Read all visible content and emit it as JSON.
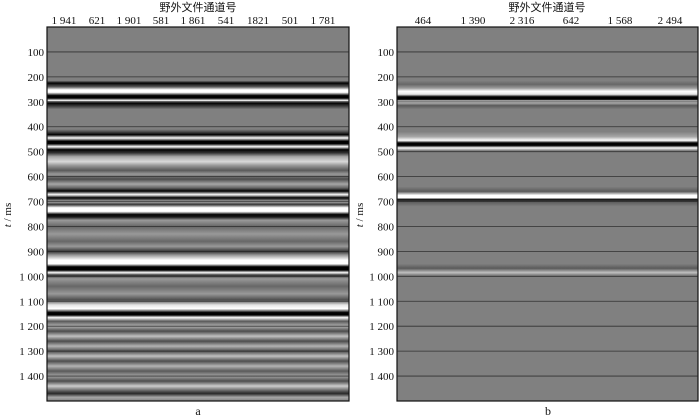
{
  "chart_data": [
    {
      "type": "heatmap",
      "panel_label": "a",
      "xlabel": "野外文件通道号",
      "ylabel_italic": "t",
      "ylabel_unit": " / ms",
      "x_tick_labels": [
        "1 941",
        "621",
        "1 901",
        "581",
        "1 861",
        "541",
        "1821",
        "501",
        "1 781"
      ],
      "y_ticks": [
        100,
        200,
        300,
        400,
        500,
        600,
        700,
        800,
        900,
        1000,
        1100,
        1200,
        1300,
        1400
      ],
      "y_tick_labels": [
        "100",
        "200",
        "300",
        "400",
        "500",
        "600",
        "700",
        "800",
        "900",
        "1 000",
        "1 100",
        "1 200",
        "1 300",
        "1 400"
      ],
      "ylim": [
        0,
        1500
      ],
      "grid": true,
      "colormap": "gray (black = negative, white = positive)",
      "amplitude_profile": [
        [
          0,
          0
        ],
        [
          215,
          0
        ],
        [
          225,
          -1
        ],
        [
          240,
          -0.3
        ],
        [
          252,
          1
        ],
        [
          262,
          1
        ],
        [
          275,
          -1
        ],
        [
          285,
          -1
        ],
        [
          295,
          1
        ],
        [
          305,
          -1
        ],
        [
          318,
          -0.5
        ],
        [
          330,
          0
        ],
        [
          410,
          0
        ],
        [
          420,
          -0.4
        ],
        [
          432,
          -1
        ],
        [
          445,
          1
        ],
        [
          458,
          -1
        ],
        [
          468,
          -1
        ],
        [
          480,
          1
        ],
        [
          492,
          -1
        ],
        [
          505,
          -0.6
        ],
        [
          520,
          0.3
        ],
        [
          540,
          0.7
        ],
        [
          555,
          0.2
        ],
        [
          575,
          -0.3
        ],
        [
          590,
          0.2
        ],
        [
          610,
          -0.4
        ],
        [
          630,
          0.3
        ],
        [
          645,
          -0.2
        ],
        [
          658,
          -1
        ],
        [
          672,
          1
        ],
        [
          685,
          -1
        ],
        [
          700,
          0.4
        ],
        [
          712,
          -0.6
        ],
        [
          725,
          1
        ],
        [
          740,
          1
        ],
        [
          752,
          -1
        ],
        [
          762,
          -0.8
        ],
        [
          775,
          0.2
        ],
        [
          800,
          -0.2
        ],
        [
          830,
          0.2
        ],
        [
          860,
          -0.2
        ],
        [
          880,
          0.2
        ],
        [
          900,
          -0.6
        ],
        [
          915,
          0.2
        ],
        [
          935,
          1
        ],
        [
          950,
          1
        ],
        [
          962,
          -1
        ],
        [
          975,
          -1
        ],
        [
          985,
          1
        ],
        [
          995,
          -0.6
        ],
        [
          1010,
          0.2
        ],
        [
          1040,
          -0.2
        ],
        [
          1070,
          0.2
        ],
        [
          1095,
          -0.4
        ],
        [
          1115,
          0.8
        ],
        [
          1130,
          1
        ],
        [
          1145,
          -1
        ],
        [
          1155,
          -1
        ],
        [
          1165,
          1
        ],
        [
          1180,
          -0.3
        ],
        [
          1200,
          0.4
        ],
        [
          1220,
          -0.4
        ],
        [
          1240,
          0.5
        ],
        [
          1260,
          -0.4
        ],
        [
          1280,
          0.4
        ],
        [
          1300,
          -0.4
        ],
        [
          1320,
          0.5
        ],
        [
          1340,
          -0.4
        ],
        [
          1360,
          0.4
        ],
        [
          1380,
          -0.3
        ],
        [
          1400,
          0.3
        ],
        [
          1420,
          -0.4
        ],
        [
          1440,
          0.6
        ],
        [
          1460,
          -0.3
        ],
        [
          1470,
          -0.7
        ],
        [
          1485,
          0.3
        ],
        [
          1500,
          0
        ]
      ]
    },
    {
      "type": "heatmap",
      "panel_label": "b",
      "xlabel": "野外文件通道号",
      "ylabel_italic": "t",
      "ylabel_unit": " / ms",
      "x_tick_labels": [
        "464",
        "1 390",
        "2 316",
        "642",
        "1 568",
        "2 494"
      ],
      "y_ticks": [
        100,
        200,
        300,
        400,
        500,
        600,
        700,
        800,
        900,
        1000,
        1100,
        1200,
        1300,
        1400
      ],
      "y_tick_labels": [
        "100",
        "200",
        "300",
        "400",
        "500",
        "600",
        "700",
        "800",
        "900",
        "1 000",
        "1 100",
        "1 200",
        "1 300",
        "1 400"
      ],
      "ylim": [
        0,
        1500
      ],
      "grid": true,
      "colormap": "gray (black = negative, white = positive)",
      "amplitude_profile": [
        [
          0,
          0
        ],
        [
          215,
          0
        ],
        [
          230,
          -0.2
        ],
        [
          245,
          0.2
        ],
        [
          258,
          1
        ],
        [
          270,
          0.8
        ],
        [
          280,
          -1
        ],
        [
          290,
          -1
        ],
        [
          298,
          1
        ],
        [
          305,
          0.3
        ],
        [
          315,
          -0.3
        ],
        [
          330,
          0
        ],
        [
          420,
          0
        ],
        [
          440,
          0.3
        ],
        [
          455,
          1
        ],
        [
          465,
          -1
        ],
        [
          475,
          -1
        ],
        [
          485,
          1
        ],
        [
          495,
          0
        ],
        [
          640,
          0
        ],
        [
          660,
          -0.3
        ],
        [
          675,
          1
        ],
        [
          685,
          1
        ],
        [
          692,
          -1
        ],
        [
          700,
          -0.3
        ],
        [
          720,
          0
        ],
        [
          950,
          0
        ],
        [
          968,
          -0.3
        ],
        [
          985,
          0.5
        ],
        [
          995,
          0
        ],
        [
          1500,
          0
        ]
      ]
    }
  ]
}
